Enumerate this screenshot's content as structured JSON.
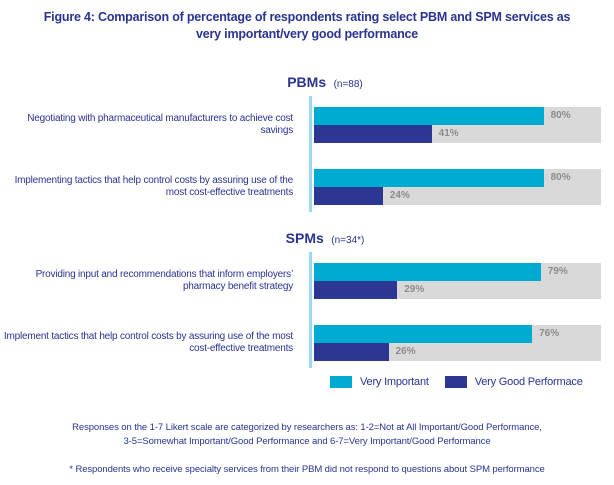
{
  "figure": {
    "title_line1": "Figure 4: Comparison of percentage of respondents rating select PBM and SPM services as",
    "title_line2": "very important/very good performance"
  },
  "colors": {
    "very_important": "#00ABD1",
    "very_good_performance": "#2B3792",
    "text_blue": "#293491",
    "track_gray": "#D9D9D9",
    "pct_gray": "#8C8C8C",
    "axis_cyan": "#98D9EB"
  },
  "chart_data": {
    "type": "bar",
    "orientation": "horizontal",
    "title": "Figure 4: Comparison of percentage of respondents rating select PBM and SPM services as very important/very good performance",
    "value_unit": "%",
    "xlim": [
      0,
      100
    ],
    "grid": false,
    "legend_position": "bottom",
    "series_names": [
      "Very Important",
      "Very Good Performace"
    ],
    "sections": [
      {
        "label": "PBMs",
        "n_label": "(n=88)",
        "rows": [
          {
            "category": "Negotiating with pharmaceutical manufacturers to achieve cost savings",
            "very_important": 80,
            "very_good_performance": 41
          },
          {
            "category": "Implementing tactics that help control costs by assuring use of the most cost-effective treatments",
            "very_important": 80,
            "very_good_performance": 24
          }
        ]
      },
      {
        "label": "SPMs",
        "n_label": "(n=34*)",
        "rows": [
          {
            "category": "Providing input and recommendations that inform employers’ pharmacy benefit strategy",
            "very_important": 79,
            "very_good_performance": 29
          },
          {
            "category": "Implement tactics that help control costs by assuring use of the most cost-effective treatments",
            "very_important": 76,
            "very_good_performance": 26
          }
        ]
      }
    ]
  },
  "legend": {
    "very_important_label": "Very Important",
    "very_good_performance_label": "Very Good Performace"
  },
  "footnotes": {
    "likert_line1": "Responses on the 1-7 Likert scale are categorized by researchers as: 1-2=Not at All Important/Good Performance,",
    "likert_line2": "3-5=Somewhat Important/Good Performance and 6-7=Very Important/Good Performance",
    "asterisk_note": "* Respondents who receive specialty services from their PBM did not respond to questions about SPM performance"
  }
}
